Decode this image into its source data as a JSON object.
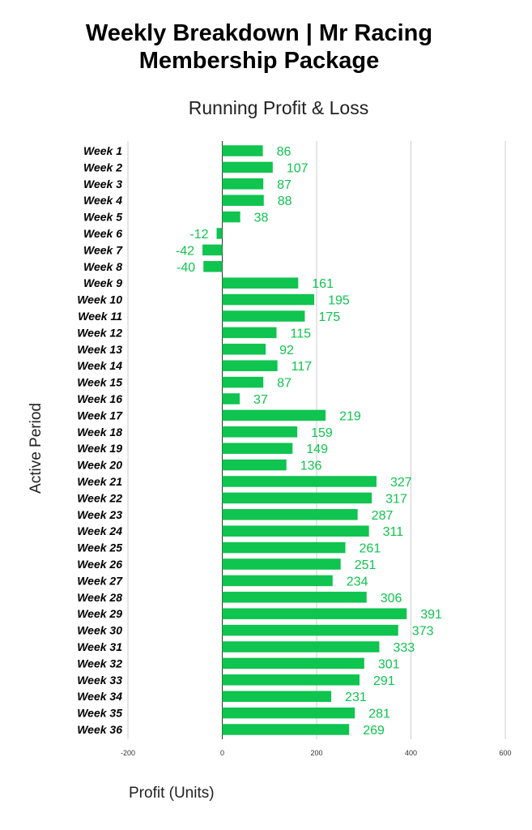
{
  "title_lines": [
    "Weekly Breakdown | Mr Racing",
    "Membership Package"
  ],
  "colors": {
    "bar": "#0fc44f",
    "data_label": "#0fc44f",
    "grid": "#cccccc",
    "zero_line": "#333333"
  },
  "chart_data": {
    "type": "bar",
    "orientation": "horizontal",
    "title": "Running Profit & Loss",
    "xlabel": "Profit (Units)",
    "ylabel": "Active Period",
    "xlim": [
      -200,
      600
    ],
    "xticks": [
      -200,
      0,
      200,
      400,
      600
    ],
    "grid": true,
    "legend": "none",
    "categories": [
      "Week 1",
      "Week 2",
      "Week 3",
      "Week 4",
      "Week 5",
      "Week 6",
      "Week 7",
      "Week 8",
      "Week 9",
      "Week 10",
      "Week 11",
      "Week 12",
      "Week 13",
      "Week 14",
      "Week 15",
      "Week 16",
      "Week 17",
      "Week 18",
      "Week 19",
      "Week 20",
      "Week 21",
      "Week 22",
      "Week 23",
      "Week 24",
      "Week 25",
      "Week 26",
      "Week 27",
      "Week 28",
      "Week 29",
      "Week 30",
      "Week 31",
      "Week 32",
      "Week 33",
      "Week 34",
      "Week 35",
      "Week 36"
    ],
    "values": [
      86,
      107,
      87,
      88,
      38,
      -12,
      -42,
      -40,
      161,
      195,
      175,
      115,
      92,
      117,
      87,
      37,
      219,
      159,
      149,
      136,
      327,
      317,
      287,
      311,
      261,
      251,
      234,
      306,
      391,
      373,
      333,
      301,
      291,
      231,
      281,
      269
    ]
  }
}
